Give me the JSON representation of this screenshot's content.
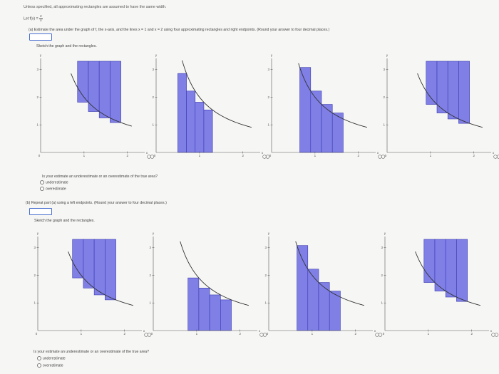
{
  "header": {
    "note": "Unless specified, all approximating rectangles are assumed to have the same width."
  },
  "function": {
    "prefix": "Let f(x) = ",
    "numerator": "2",
    "denominator": "x"
  },
  "part_a": {
    "label": "(a)",
    "prompt": "Estimate the area under the graph of f, the x-axis, and the lines x = 1 and x = 2 using four approximating rectangles and right endpoints. (Round your answer to four decimal places.)",
    "answer": "",
    "sketch_label": "Sketch the graph and the rectangles.",
    "question": "Is your estimate an underestimate or an overestimate of the true area?",
    "options": [
      "underestimate",
      "overestimate"
    ]
  },
  "part_b": {
    "label": "(b)",
    "prompt": "Repeat part (a) using a left endpoints. (Round your answer to four decimal places.)",
    "answer": "",
    "sketch_label": "Sketch the graph and the rectangles.",
    "question": "Is your estimate an underestimate or an overestimate of the true area?",
    "options": [
      "underestimate",
      "overestimate"
    ]
  },
  "axes": {
    "x_label": "x",
    "y_label": "y",
    "y_ticks": [
      "1",
      "2",
      "3"
    ],
    "x_ticks": [
      "1",
      "2"
    ],
    "origin": "0"
  },
  "colors": {
    "bar_fill": "#7f7fe6",
    "bar_stroke": "#3a3ab0",
    "curve": "#333333",
    "axis": "#555555",
    "answer_border": "#4a6fd1"
  },
  "icons": {
    "info": "info-icon",
    "zoom": "magnifier-icon"
  }
}
